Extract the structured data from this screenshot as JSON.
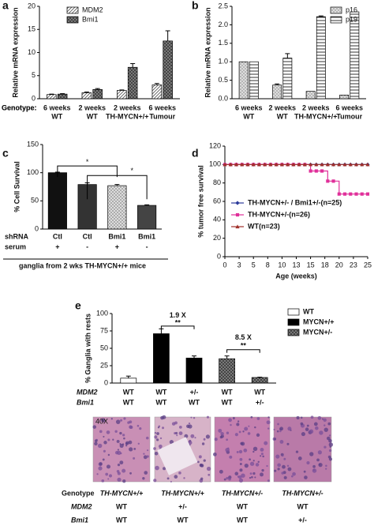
{
  "panel_labels": [
    "a",
    "b",
    "c",
    "d",
    "e"
  ],
  "chart_data": [
    {
      "type": "bar",
      "ylabel": "Relative mRNA expression",
      "ylim": [
        0,
        20
      ],
      "yticks": [
        0,
        5,
        10,
        15,
        20
      ],
      "row_label": "Genotype:",
      "categories": [
        [
          "6 weeks",
          "WT"
        ],
        [
          "2 weeks",
          "WT"
        ],
        [
          "2 weeks",
          "TH-MYCN+/+"
        ],
        [
          "6 weeks",
          "Tumour"
        ]
      ],
      "legend": "top-left",
      "series": [
        {
          "name": "MDM2",
          "color": "#555555",
          "pattern": "diagonal",
          "values": [
            0.9,
            1.3,
            1.8,
            3.0
          ],
          "errors": [
            0.1,
            0.15,
            0.1,
            0.3
          ]
        },
        {
          "name": "Bmi1",
          "color": "#444444",
          "pattern": "checker",
          "values": [
            1.0,
            2.0,
            6.8,
            12.5
          ],
          "errors": [
            0.1,
            0.2,
            0.8,
            2.2
          ]
        }
      ]
    },
    {
      "type": "bar",
      "ylabel": "Relative mRNA expression",
      "ylim": [
        0,
        2.5
      ],
      "yticks": [
        {
          "value": 0,
          "label": "0.0"
        },
        0.5,
        {
          "value": 1,
          "label": "1.0"
        },
        1.5,
        {
          "value": 2,
          "label": "2.0"
        },
        2.5
      ],
      "row_label": "Genotype:",
      "categories": [
        [
          "6 weeks",
          "WT"
        ],
        [
          "2 weeks",
          "WT"
        ],
        [
          "2 weeks",
          "TH-MYCN+/+"
        ],
        [
          "6 weeks",
          "Tumour"
        ]
      ],
      "legend": "top-right",
      "series": [
        {
          "name": "p16",
          "color": "#555555",
          "pattern": "dots",
          "values": [
            1.0,
            0.37,
            0.2,
            0.1
          ],
          "errors": [
            null,
            0.03,
            null,
            null
          ]
        },
        {
          "name": "p19",
          "color": "#333333",
          "pattern": "horizontal",
          "values": [
            1.0,
            1.1,
            2.22,
            2.35
          ],
          "errors": [
            null,
            0.12,
            0.02,
            null
          ]
        }
      ]
    },
    {
      "type": "bar",
      "ylabel": "% Cell Survival",
      "ylim": [
        0,
        150
      ],
      "yticks": [
        0,
        50,
        100,
        150
      ],
      "values": [
        100,
        79,
        77,
        42
      ],
      "errors": [
        1,
        3,
        2,
        1
      ],
      "colors": [
        "#111111",
        "#333333",
        "#333333",
        "#444444"
      ],
      "patterns": [
        null,
        null,
        "dots",
        null
      ],
      "rows": [
        {
          "label": "shRNA",
          "cells": [
            "Ctl",
            "Ctl",
            "Bmi1",
            "Bmi1"
          ]
        },
        {
          "label": "serum",
          "cells": [
            "+",
            "-",
            "+",
            "-"
          ]
        }
      ],
      "footer": "ganglia from 2 wks TH-MYCN+/+ mice",
      "annotations": [
        "*",
        "*"
      ]
    },
    {
      "type": "line",
      "ylabel": "% tumor free survival",
      "xlabel": "Age (weeks)",
      "xlim": [
        0,
        25
      ],
      "xticks": [
        0,
        {
          "value": 2.5,
          "label": "3"
        },
        5,
        {
          "value": 7.5,
          "label": "8"
        },
        10,
        {
          "value": 12.5,
          "label": "13"
        },
        15,
        {
          "value": 17.5,
          "label": "18"
        },
        20,
        {
          "value": 22.5,
          "label": "23"
        },
        25
      ],
      "ylim": [
        0,
        120
      ],
      "yticks": [
        0,
        20,
        40,
        60,
        80,
        100,
        120
      ],
      "legend": "center-left",
      "x": [
        0,
        1,
        2,
        3,
        4,
        5,
        6,
        7,
        8,
        9,
        10,
        11,
        12,
        13,
        14,
        15,
        16,
        17,
        18,
        19,
        20,
        21,
        22,
        23,
        24,
        25
      ],
      "series": [
        {
          "name": "TH-MYCN+/- / Bmi1+/-(n=25)",
          "color": "#2b3a9a",
          "marker": "diamond",
          "values": [
            100,
            100,
            100,
            100,
            100,
            100,
            100,
            100,
            100,
            100,
            100,
            100,
            100,
            100,
            100,
            100,
            100,
            100,
            100,
            100,
            100,
            100,
            100,
            100,
            100,
            100
          ]
        },
        {
          "name": "TH-MYCN+/-(n=26)",
          "color": "#e0309a",
          "marker": "square",
          "values": [
            100,
            100,
            100,
            100,
            100,
            100,
            100,
            100,
            100,
            100,
            100,
            100,
            100,
            100,
            100,
            93,
            93,
            93,
            82,
            82,
            68,
            68,
            68,
            68,
            68,
            68
          ]
        },
        {
          "name": "WT(n=23)",
          "color": "#a0302a",
          "marker": "triangle",
          "values": [
            100,
            100,
            100,
            100,
            100,
            100,
            100,
            100,
            100,
            100,
            100,
            100,
            100,
            100,
            100,
            100,
            100,
            100,
            100,
            100,
            100,
            100,
            100,
            100,
            100,
            100
          ]
        }
      ]
    },
    {
      "type": "bar",
      "ylabel": "% Ganglia with rests",
      "ylim": [
        0,
        100
      ],
      "yticks": [
        0,
        25,
        50,
        75,
        100
      ],
      "categories": [
        null,
        null,
        null,
        null,
        null
      ],
      "legend": "right",
      "series": [
        {
          "name": "WT",
          "color": "#ffffff",
          "pattern": null,
          "values": [
            7,
            null,
            null,
            null,
            null
          ],
          "errors": [
            3,
            null,
            null,
            null,
            null
          ]
        },
        {
          "name": "MYCN+/+",
          "color": "#000000",
          "pattern": null,
          "values": [
            null,
            71,
            36,
            null,
            null
          ],
          "errors": [
            null,
            7,
            3,
            null,
            null
          ]
        },
        {
          "name": "MYCN+/-",
          "color": "#444444",
          "pattern": "checker",
          "values": [
            null,
            null,
            null,
            35,
            8
          ],
          "errors": [
            null,
            null,
            null,
            4,
            0.5
          ]
        }
      ],
      "rows": [
        {
          "label": "MDM2",
          "cells": [
            "WT",
            "WT",
            "+/-",
            "WT",
            "WT"
          ]
        },
        {
          "label": "Bmi1",
          "cells": [
            "WT",
            "WT",
            "WT",
            "WT",
            "+/-"
          ]
        }
      ],
      "annotations": [
        "1.9 X",
        "**",
        "8.5 X",
        "**"
      ]
    }
  ],
  "histology": {
    "magnification": "40X",
    "rows": [
      {
        "label": "Genotype",
        "cells": [
          "TH-MYCN+/+",
          "TH-MYCN+/+",
          "TH-MYCN+/-",
          "TH-MYCN+/-"
        ]
      },
      {
        "label": "MDM2",
        "cells": [
          "WT",
          "+/-",
          "WT",
          "WT"
        ]
      },
      {
        "label": "Bmi1",
        "cells": [
          "WT",
          "WT",
          "WT",
          "+/-"
        ]
      }
    ]
  }
}
